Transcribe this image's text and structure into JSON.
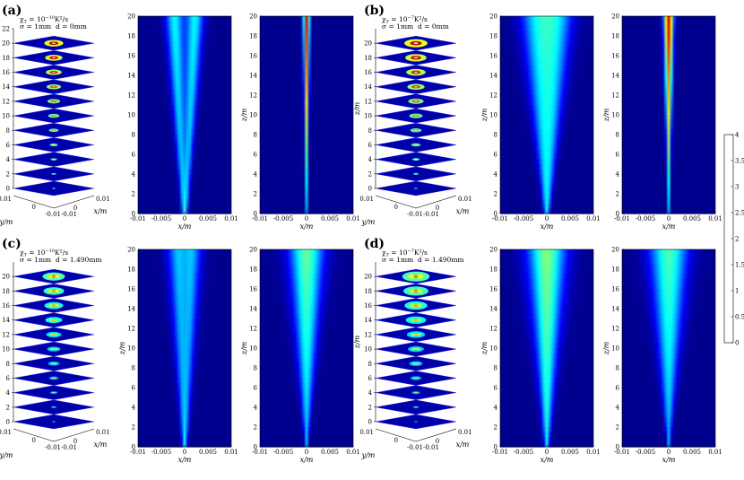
{
  "colors": {
    "cmap": [
      "#00008f",
      "#0000ff",
      "#007fff",
      "#00ffff",
      "#7fff7f",
      "#ffff00",
      "#ff7f00",
      "#ff0000",
      "#7f0000"
    ],
    "background_blue": "#00008f"
  },
  "chart_data": {
    "type": "heatmap",
    "panels": [
      {
        "label": "(a)",
        "params": {
          "chi": "χ_T = 10^{-10}K²/s",
          "sigma": "σ = 1mm",
          "d": "d = 0mm"
        },
        "chi_base": "10",
        "chi_exp": "−10",
        "chi_unit": "K²/s",
        "sigma_text": "σ = 1mm",
        "d_text": "d = 0mm",
        "mode": "off",
        "spread": 0.1,
        "peak_center": 3.6,
        "peak_ring": 1.5,
        "slices_3d": {
          "z_ticks": [
            0,
            2,
            4,
            6,
            8,
            10,
            12,
            14,
            16,
            18,
            20,
            22
          ],
          "y_ticks": [
            "0.01",
            "0",
            "-0.01"
          ],
          "x_ticks": [
            "-0.01",
            "0",
            "0.01"
          ],
          "ylabel": "y/m",
          "xlabel": "x/m",
          "zlabel": "z/m"
        },
        "xz_ring": {
          "x_ticks": [
            "-0.01",
            "-0.005",
            "0",
            "0.005",
            "0.01"
          ],
          "z_ticks": [
            0,
            2,
            4,
            6,
            8,
            10,
            12,
            14,
            16,
            18,
            20
          ],
          "xlabel": "x/m",
          "zlabel": ""
        },
        "xz_center": {
          "x_ticks": [
            "-0.01",
            "-0.005",
            "0",
            "0.005",
            "0.01"
          ],
          "z_ticks": [
            0,
            2,
            4,
            6,
            8,
            10,
            12,
            14,
            16,
            18,
            20
          ],
          "xlabel": "x/m",
          "zlabel": "z/m"
        }
      },
      {
        "label": "(b)",
        "params": {
          "chi": "χ_T = 10^{-7}K²/s",
          "sigma": "σ = 1mm",
          "d": "d = 0mm"
        },
        "chi_base": "10",
        "chi_exp": "−7",
        "chi_unit": "K²/s",
        "sigma_text": "σ = 1mm",
        "d_text": "d = 0mm",
        "mode": "off",
        "spread": 0.5,
        "peak_center": 3.8,
        "peak_ring": 1.3,
        "slices_3d": {
          "z_ticks": [
            0,
            2,
            4,
            6,
            8,
            10,
            12,
            14,
            16,
            18,
            20
          ],
          "y_ticks": [
            "0.01",
            "0",
            "-0.01"
          ],
          "x_ticks": [
            "-0.01",
            "0",
            "0.01"
          ],
          "ylabel": "y/m",
          "xlabel": "x/m",
          "zlabel": "z/m"
        },
        "xz_ring": {
          "x_ticks": [
            "-0.01",
            "-0.005",
            "0",
            "0.005",
            "0.01"
          ],
          "z_ticks": [
            0,
            2,
            4,
            6,
            8,
            10,
            12,
            14,
            16,
            18,
            20
          ],
          "xlabel": "x/m",
          "zlabel": "z/m"
        },
        "xz_center": {
          "x_ticks": [
            "-0.01",
            "-0.005",
            "0",
            "0.005",
            "0.01"
          ],
          "z_ticks": [
            0,
            2,
            4,
            6,
            8,
            10,
            12,
            14,
            16,
            18,
            20
          ],
          "xlabel": "x/m",
          "zlabel": "z/m"
        }
      },
      {
        "label": "(c)",
        "params": {
          "chi": "χ_T = 10^{-10}K²/s",
          "sigma": "σ = 1mm",
          "d": "d = 1.490mm"
        },
        "chi_base": "10",
        "chi_exp": "−10",
        "chi_unit": "K²/s",
        "sigma_text": "σ = 1mm",
        "d_text": "d = 1.490mm",
        "mode": "on",
        "spread": 0.15,
        "peak_center": 1.9,
        "peak_ring": 1.2,
        "slices_3d": {
          "z_ticks": [
            0,
            2,
            4,
            6,
            8,
            10,
            12,
            14,
            16,
            18,
            20
          ],
          "y_ticks": [
            "0.01",
            "0",
            "-0.01"
          ],
          "x_ticks": [
            "-0.01",
            "0",
            "0.01"
          ],
          "ylabel": "y/m",
          "xlabel": "x/m",
          "zlabel": "z/m"
        },
        "xz_ring": {
          "x_ticks": [
            "-0.01",
            "-0.005",
            "0",
            "0.005",
            "0.01"
          ],
          "z_ticks": [
            0,
            2,
            4,
            6,
            8,
            10,
            12,
            14,
            16,
            18,
            20
          ],
          "xlabel": "x/m",
          "zlabel": "z/m"
        },
        "xz_center": {
          "x_ticks": [
            "-0.01",
            "-0.005",
            "0",
            "0.005",
            "0.01"
          ],
          "z_ticks": [
            0,
            2,
            4,
            6,
            8,
            10,
            12,
            14,
            16,
            18,
            20
          ],
          "xlabel": "x/m",
          "zlabel": "z/m"
        }
      },
      {
        "label": "(d)",
        "params": {
          "chi": "χ_T = 10^{-7}K²/s",
          "sigma": "σ = 1mm",
          "d": "d = 1.490mm"
        },
        "chi_base": "10",
        "chi_exp": "−7",
        "chi_unit": "K²/s",
        "sigma_text": "σ = 1mm",
        "d_text": "d = 1.490mm",
        "mode": "on",
        "spread": 0.55,
        "peak_center": 1.8,
        "peak_ring": 1.1,
        "slices_3d": {
          "z_ticks": [
            0,
            2,
            4,
            6,
            8,
            10,
            12,
            14,
            16,
            18,
            20
          ],
          "y_ticks": [
            "0.01",
            "0",
            "-0.01"
          ],
          "x_ticks": [
            "-0.01",
            "0",
            "0.01"
          ],
          "ylabel": "y/m",
          "xlabel": "x/m",
          "zlabel": "z/m"
        },
        "xz_ring": {
          "x_ticks": [
            "-0.01",
            "-0.005",
            "0",
            "0.005",
            "0.01"
          ],
          "z_ticks": [
            0,
            2,
            4,
            6,
            8,
            10,
            12,
            14,
            16,
            18,
            20
          ],
          "xlabel": "x/m",
          "zlabel": "z/m"
        },
        "xz_center": {
          "x_ticks": [
            "-0.01",
            "-0.005",
            "0",
            "0.005",
            "0.01"
          ],
          "z_ticks": [
            0,
            2,
            4,
            6,
            8,
            10,
            12,
            14,
            16,
            18,
            20
          ],
          "xlabel": "x/m",
          "zlabel": "z/m"
        }
      }
    ],
    "colorbar": {
      "min": 0,
      "max": 4,
      "ticks": [
        "0",
        "0.5",
        "1",
        "1.5",
        "2",
        "2.5",
        "3",
        "3.5",
        "4"
      ]
    }
  }
}
